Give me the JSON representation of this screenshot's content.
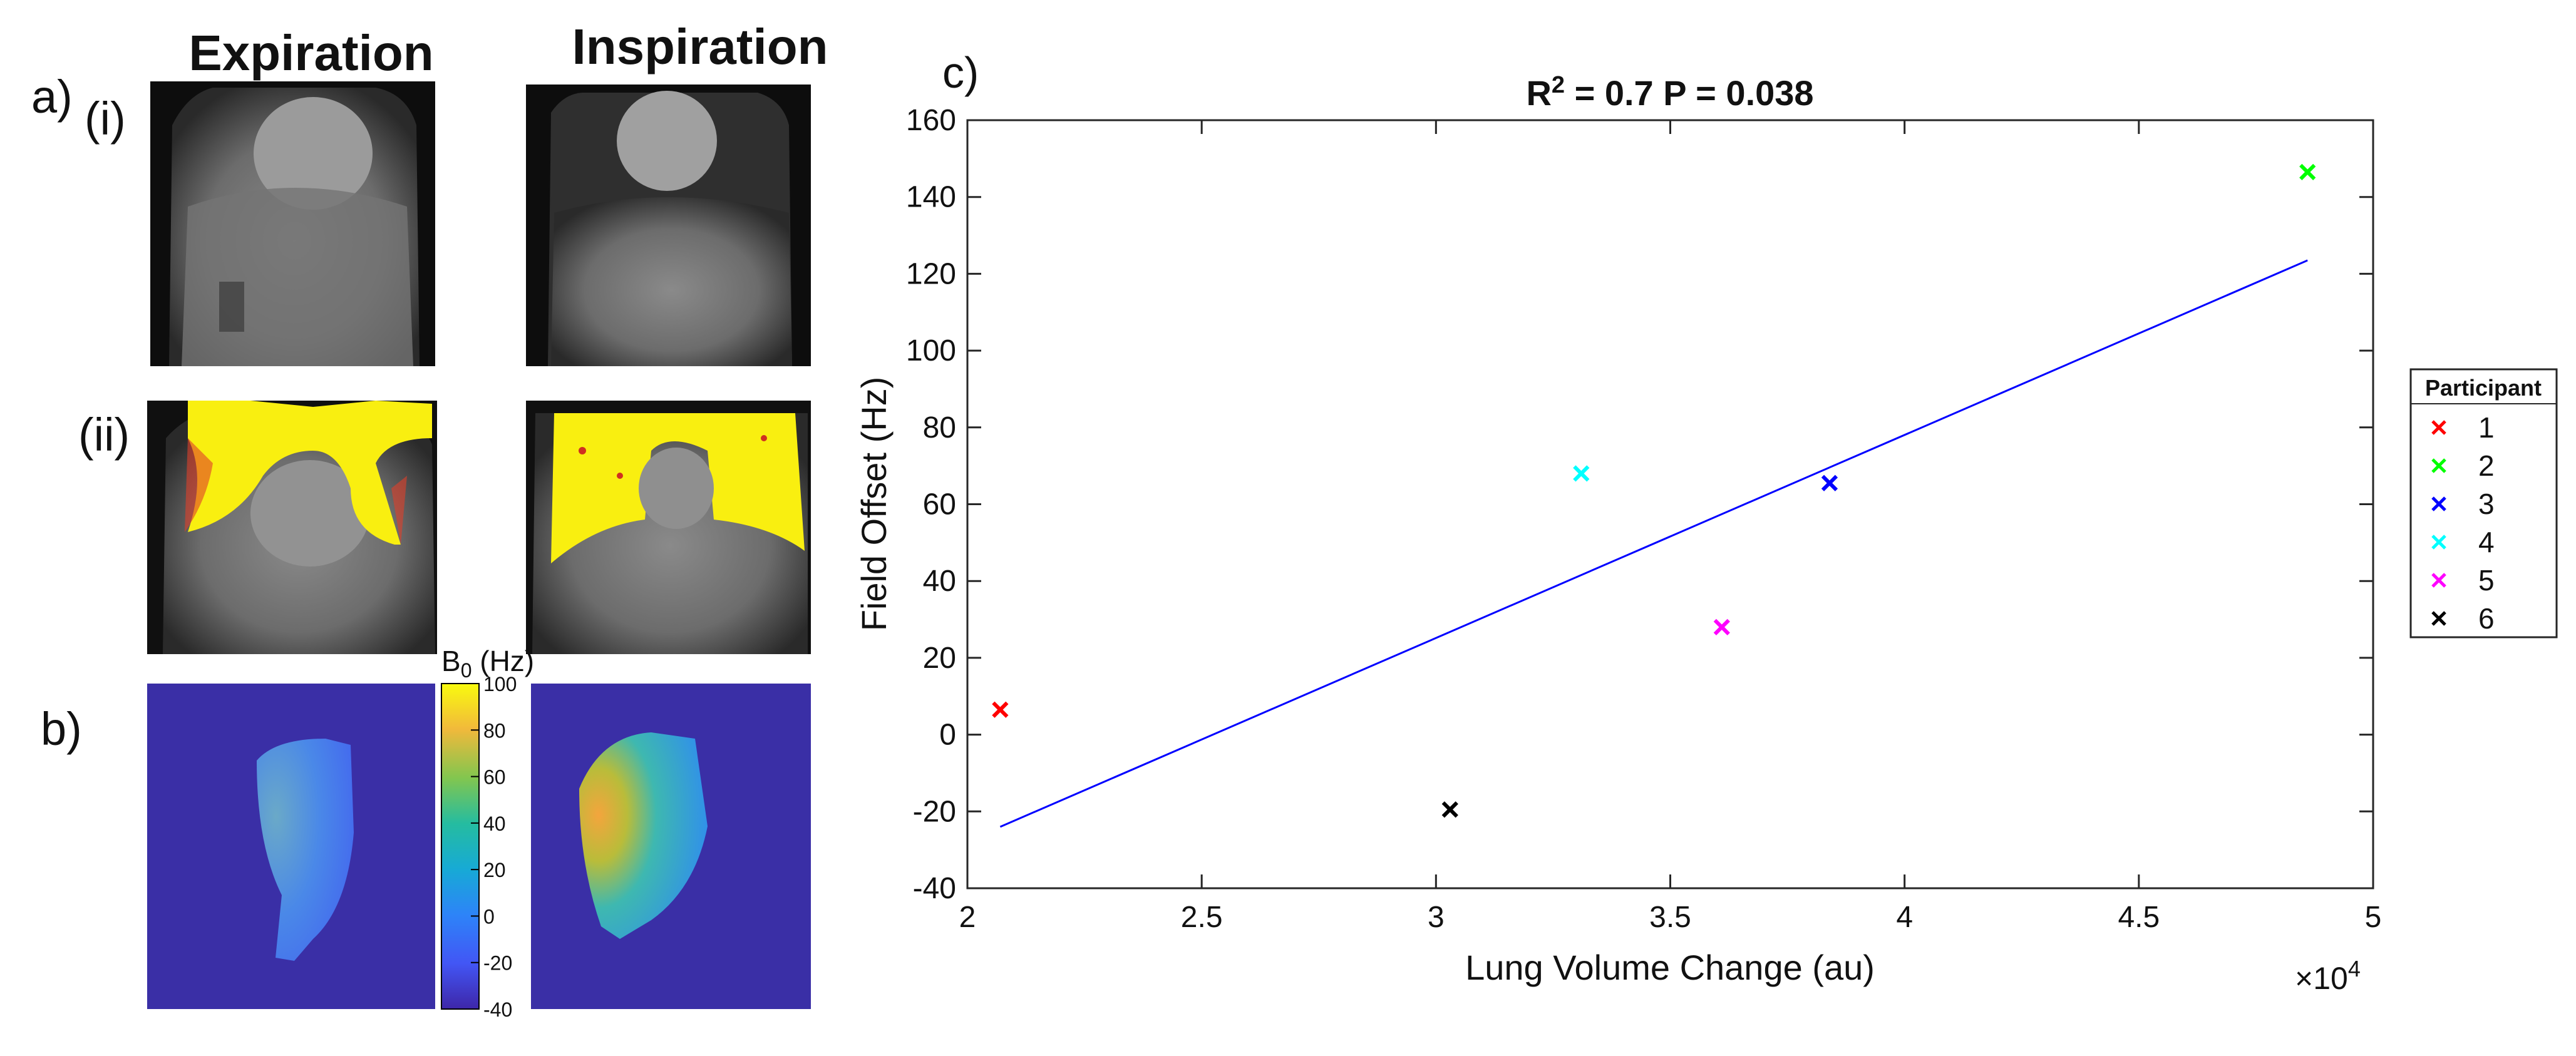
{
  "panel_a": {
    "label": "a)",
    "row_i_label": "(i)",
    "row_ii_label": "(ii)",
    "col_expiration": "Expiration",
    "col_inspiration": "Inspiration"
  },
  "panel_b": {
    "label": "b)",
    "colorbar_title": "B",
    "colorbar_subscript": "0",
    "colorbar_unit": " (Hz)",
    "colorbar_ticks": [
      "100",
      "80",
      "60",
      "40",
      "20",
      "0",
      "-20",
      "-40"
    ],
    "colorbar_tick_values": [
      100,
      80,
      60,
      40,
      20,
      0,
      -20,
      -40
    ],
    "colorbar_range": [
      -40,
      100
    ],
    "colors": {
      "field_bg": "#3a2fa6",
      "low": "#3e26a8",
      "high": "#f9fb0e"
    }
  },
  "panel_c": {
    "label": "c)"
  },
  "chart_data": {
    "type": "scatter",
    "title_prefix": "R",
    "title_sup": "2",
    "title_suffix": " = 0.7 P = 0.038",
    "xlabel": "Lung Volume Change (au)",
    "ylabel": "Field Offset (Hz)",
    "x_exponent_base": "×10",
    "x_exponent_power": "4",
    "xlim": [
      2,
      5
    ],
    "ylim": [
      -40,
      160
    ],
    "xticks": [
      2,
      2.5,
      3,
      3.5,
      4,
      4.5,
      5
    ],
    "xtick_labels": [
      "2",
      "2.5",
      "3",
      "3.5",
      "4",
      "4.5",
      "5"
    ],
    "yticks": [
      -40,
      -20,
      0,
      20,
      40,
      60,
      80,
      100,
      120,
      140,
      160
    ],
    "ytick_labels": [
      "-40",
      "-20",
      "0",
      "20",
      "40",
      "60",
      "80",
      "100",
      "120",
      "140",
      "160"
    ],
    "grid": false,
    "legend_title": "Participant",
    "legend_position": "outside-right",
    "series": [
      {
        "name": "1",
        "x": 2.07,
        "y": 6.5,
        "color": "#ff0000"
      },
      {
        "name": "2",
        "x": 4.86,
        "y": 146.5,
        "color": "#00ff00"
      },
      {
        "name": "3",
        "x": 3.84,
        "y": 65.5,
        "color": "#0000ff"
      },
      {
        "name": "4",
        "x": 3.31,
        "y": 68,
        "color": "#00ffff"
      },
      {
        "name": "5",
        "x": 3.61,
        "y": 28,
        "color": "#ff00ff"
      },
      {
        "name": "6",
        "x": 3.03,
        "y": -19.5,
        "color": "#000000"
      }
    ],
    "fit_line": {
      "x": [
        2.07,
        4.86
      ],
      "y": [
        -24,
        123.5
      ],
      "color": "#0000ff"
    }
  }
}
